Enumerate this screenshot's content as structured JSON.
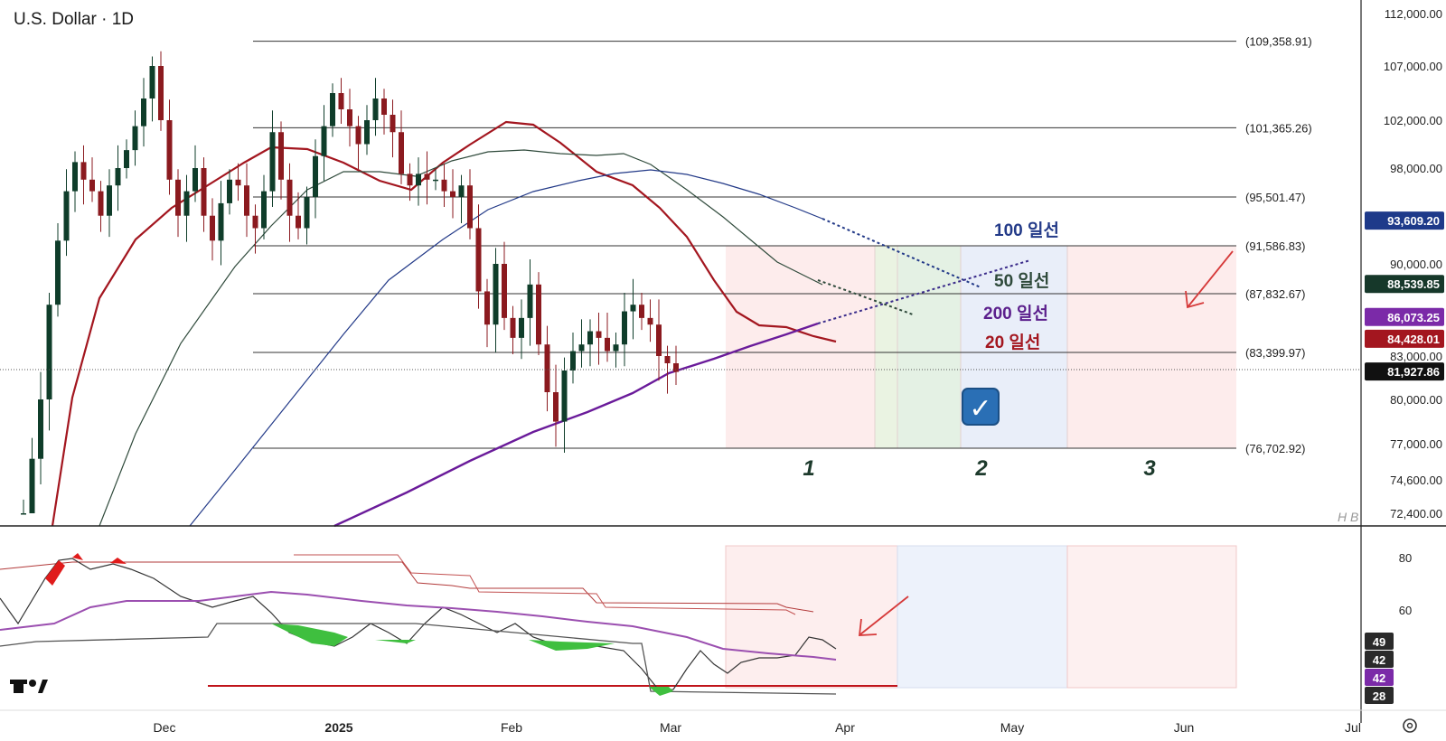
{
  "header": {
    "title": "U.S. Dollar · 1D"
  },
  "watermark": "H B",
  "logo": "TV",
  "colors": {
    "up": "#0f3d2a",
    "down": "#8b1a1f",
    "ma20": "#a3161f",
    "ma50": "#2f4a3b",
    "ma100": "#233a88",
    "ma200": "#6a1b9a",
    "level": "#333333",
    "zone_red": "#fdecec",
    "zone_green": "#e4f1e4",
    "zone_blue": "#e9eef9",
    "annot_arrow": "#d63a3a"
  },
  "price_axis": {
    "ticks": [
      "112,000.00",
      "107,000.00",
      "102,000.00",
      "98,000.00",
      "90,000.00",
      "83,000.00",
      "80,000.00",
      "77,000.00",
      "74,600.00",
      "72,400.00"
    ],
    "tags": [
      {
        "label": "93,609.20",
        "bg": "#1e3a8a"
      },
      {
        "label": "88,539.85",
        "bg": "#16382a"
      },
      {
        "label": "86,073.25",
        "bg": "#7b2aa8"
      },
      {
        "label": "84,428.01",
        "bg": "#a3161f"
      },
      {
        "label": "81,927.86",
        "bg": "#111111"
      }
    ]
  },
  "levels": [
    "(109,358.91)",
    "(101,365.26)",
    "(95,501.47)",
    "(91,586.83)",
    "(87,832.67)",
    "(83,399.97)",
    "(76,702.92)"
  ],
  "ma_labels": [
    {
      "text": "100 일선",
      "color": "#233a88"
    },
    {
      "text": "50  일선",
      "color": "#2f4a3b"
    },
    {
      "text": "200 일선",
      "color": "#5b1f8c"
    },
    {
      "text": "20  일선",
      "color": "#a3161f"
    }
  ],
  "zone_numbers": [
    "1",
    "2",
    "3"
  ],
  "checkbox": "✓",
  "time_axis": [
    "Dec",
    "2025",
    "Feb",
    "Mar",
    "Apr",
    "May",
    "Jun",
    "Jul"
  ],
  "indicator_axis": {
    "ticks": [
      "80",
      "60"
    ],
    "tags": [
      {
        "label": "49",
        "bg": "#2a2a2a"
      },
      {
        "label": "42",
        "bg": "#2a2a2a"
      },
      {
        "label": "42",
        "bg": "#7b2aa8"
      },
      {
        "label": "28",
        "bg": "#2a2a2a"
      }
    ]
  },
  "chart_data": {
    "type": "candlestick",
    "title": "U.S. Dollar · 1D",
    "ylim": [
      72400,
      112000
    ],
    "levels": [
      109358.91,
      101365.26,
      95501.47,
      91586.83,
      87832.67,
      83399.97,
      76702.92
    ],
    "last_price": 81927.86,
    "moving_averages": [
      {
        "name": "100 일선",
        "last": 93609.2
      },
      {
        "name": "50 일선",
        "last": 88539.85
      },
      {
        "name": "200 일선",
        "last": 86073.25
      },
      {
        "name": "20 일선",
        "last": 84428.01
      }
    ],
    "x": [
      "Dec",
      "2025",
      "Feb",
      "Mar",
      "Apr",
      "May",
      "Jun",
      "Jul"
    ],
    "candles_close_approx": [
      72400,
      76000,
      80000,
      87000,
      92000,
      96000,
      98500,
      97000,
      96000,
      94000,
      96500,
      98000,
      99500,
      101500,
      104000,
      107000,
      102000,
      97000,
      94000,
      96000,
      98000,
      94000,
      92000,
      95000,
      97000,
      96500,
      94000,
      93000,
      96000,
      101000,
      97000,
      94000,
      93000,
      95500,
      99000,
      101500,
      104500,
      103000,
      101500,
      100000,
      102000,
      104000,
      102500,
      101000,
      97500,
      96500,
      97500,
      97000,
      97000,
      96000,
      95500,
      96500,
      93000,
      88000,
      85500,
      90000,
      86000,
      84500,
      86000,
      88500,
      84000,
      80500,
      78500,
      82000,
      83500,
      84000,
      85000,
      84500,
      83500,
      84000,
      86500,
      87000,
      86000,
      85500,
      83000,
      82500,
      81900
    ],
    "indicator": {
      "ticks": [
        80,
        60
      ],
      "values": [
        49,
        42,
        42,
        28
      ]
    }
  }
}
